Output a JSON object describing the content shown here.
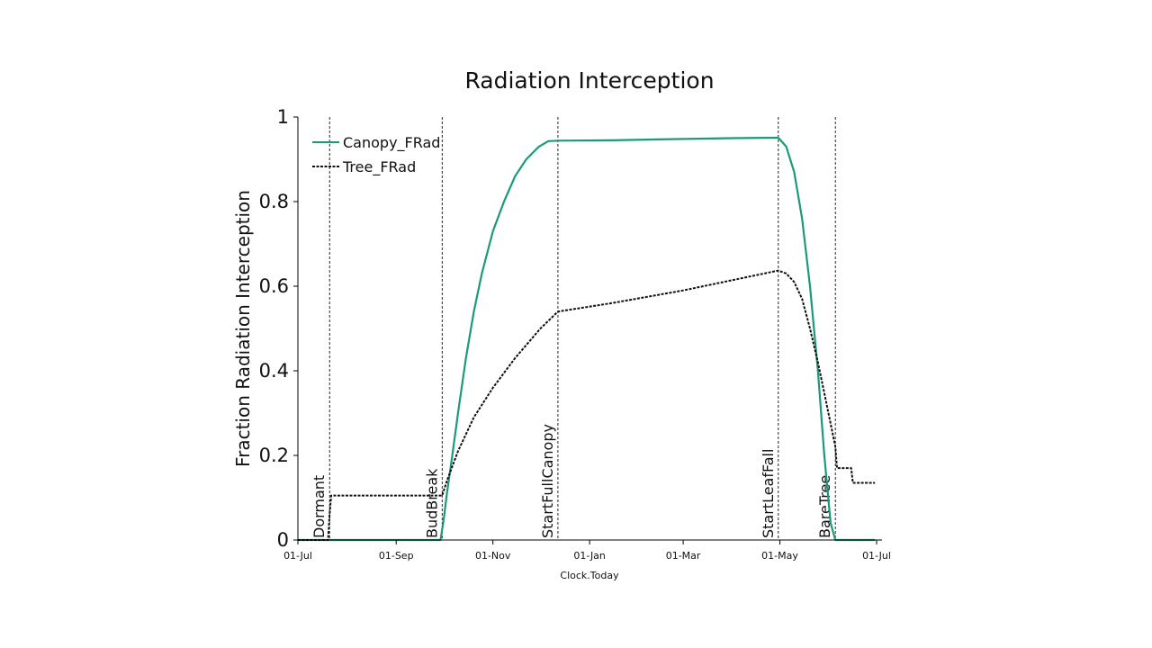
{
  "chart_data": {
    "type": "line",
    "title": "Radiation Interception",
    "xlabel": "Clock.Today",
    "ylabel": "Fraction Radiation Interception",
    "xlim": [
      "2022-07-01",
      "2023-07-01"
    ],
    "ylim": [
      0,
      1
    ],
    "x_ticks": [
      "01-Jul",
      "01-Sep",
      "01-Nov",
      "01-Jan",
      "01-Mar",
      "01-May",
      "01-Jul"
    ],
    "x_tick_dates": [
      "2022-07-01",
      "2022-09-01",
      "2022-11-01",
      "2023-01-01",
      "2023-03-01",
      "2023-05-01",
      "2023-07-01"
    ],
    "y_ticks": [
      "0",
      "0.2",
      "0.4",
      "0.6",
      "0.8",
      "1"
    ],
    "y_tick_values": [
      0,
      0.2,
      0.4,
      0.6,
      0.8,
      1
    ],
    "legend_position": "top-left",
    "grid": false,
    "series": [
      {
        "name": "Canopy_FRad",
        "color": "#1a9a78",
        "style": "solid",
        "x": [
          "2022-07-01",
          "2022-07-20",
          "2022-08-15",
          "2022-09-15",
          "2022-09-29",
          "2022-10-01",
          "2022-10-03",
          "2022-10-06",
          "2022-10-10",
          "2022-10-15",
          "2022-10-20",
          "2022-10-25",
          "2022-11-01",
          "2022-11-08",
          "2022-11-15",
          "2022-11-22",
          "2022-11-30",
          "2022-12-06",
          "2022-12-12",
          "2023-01-15",
          "2023-03-01",
          "2023-04-01",
          "2023-04-30",
          "2023-05-05",
          "2023-05-10",
          "2023-05-15",
          "2023-05-20",
          "2023-05-25",
          "2023-05-29",
          "2023-06-02",
          "2023-06-05",
          "2023-06-15",
          "2023-06-30"
        ],
        "y": [
          0,
          0,
          0,
          0,
          0,
          0.05,
          0.11,
          0.19,
          0.3,
          0.43,
          0.54,
          0.63,
          0.73,
          0.8,
          0.86,
          0.9,
          0.93,
          0.943,
          0.944,
          0.945,
          0.948,
          0.95,
          0.951,
          0.93,
          0.87,
          0.76,
          0.6,
          0.4,
          0.2,
          0.04,
          0,
          0,
          0
        ]
      },
      {
        "name": "Tree_FRad",
        "color": "#111111",
        "style": "dashed",
        "x": [
          "2022-07-01",
          "2022-07-20",
          "2022-07-21",
          "2022-07-22",
          "2022-08-15",
          "2022-09-15",
          "2022-09-30",
          "2022-10-03",
          "2022-10-10",
          "2022-10-20",
          "2022-11-01",
          "2022-11-15",
          "2022-12-01",
          "2022-12-12",
          "2023-01-15",
          "2023-03-01",
          "2023-04-30",
          "2023-05-05",
          "2023-05-10",
          "2023-05-15",
          "2023-05-20",
          "2023-05-25",
          "2023-05-30",
          "2023-06-05",
          "2023-06-06",
          "2023-06-12",
          "2023-06-15",
          "2023-06-16",
          "2023-06-30"
        ],
        "y": [
          0,
          0,
          0.06,
          0.105,
          0.105,
          0.105,
          0.105,
          0.14,
          0.21,
          0.29,
          0.36,
          0.43,
          0.5,
          0.54,
          0.56,
          0.59,
          0.637,
          0.63,
          0.61,
          0.57,
          0.5,
          0.42,
          0.33,
          0.22,
          0.17,
          0.17,
          0.17,
          0.135,
          0.135
        ]
      }
    ],
    "phases": [
      {
        "label": "Dormant",
        "date": "2022-07-21"
      },
      {
        "label": "BudBreak",
        "date": "2022-09-30"
      },
      {
        "label": "StartFullCanopy",
        "date": "2022-12-12"
      },
      {
        "label": "StartLeafFall",
        "date": "2023-04-30"
      },
      {
        "label": "BareTree",
        "date": "2023-06-05"
      }
    ]
  }
}
